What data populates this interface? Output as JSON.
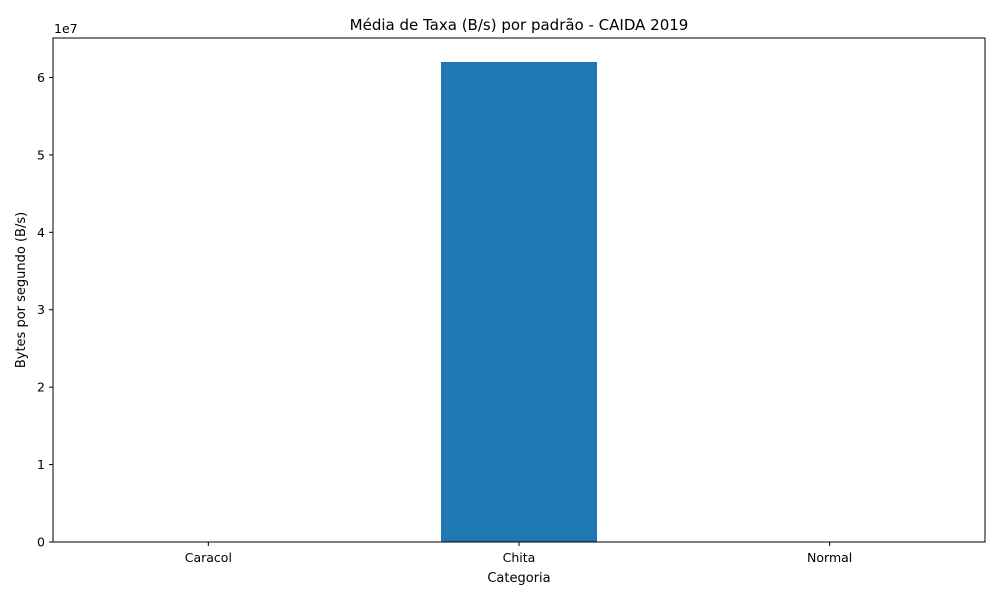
{
  "chart_data": {
    "type": "bar",
    "title": "Média de Taxa (B/s) por padrão - CAIDA 2019",
    "xlabel": "Categoria",
    "ylabel": "Bytes por segundo (B/s)",
    "categories": [
      "Caracol",
      "Chita",
      "Normal"
    ],
    "values": [
      0,
      62000000,
      0
    ],
    "ylim": [
      0,
      65100000
    ],
    "y_tick_labels": [
      "0",
      "1",
      "2",
      "3",
      "4",
      "5",
      "6"
    ],
    "y_tick_values": [
      0,
      10000000,
      20000000,
      30000000,
      40000000,
      50000000,
      60000000
    ],
    "y_offset_label": "1e7",
    "bar_color": "#1f77b4",
    "grid": false,
    "legend": "none"
  }
}
